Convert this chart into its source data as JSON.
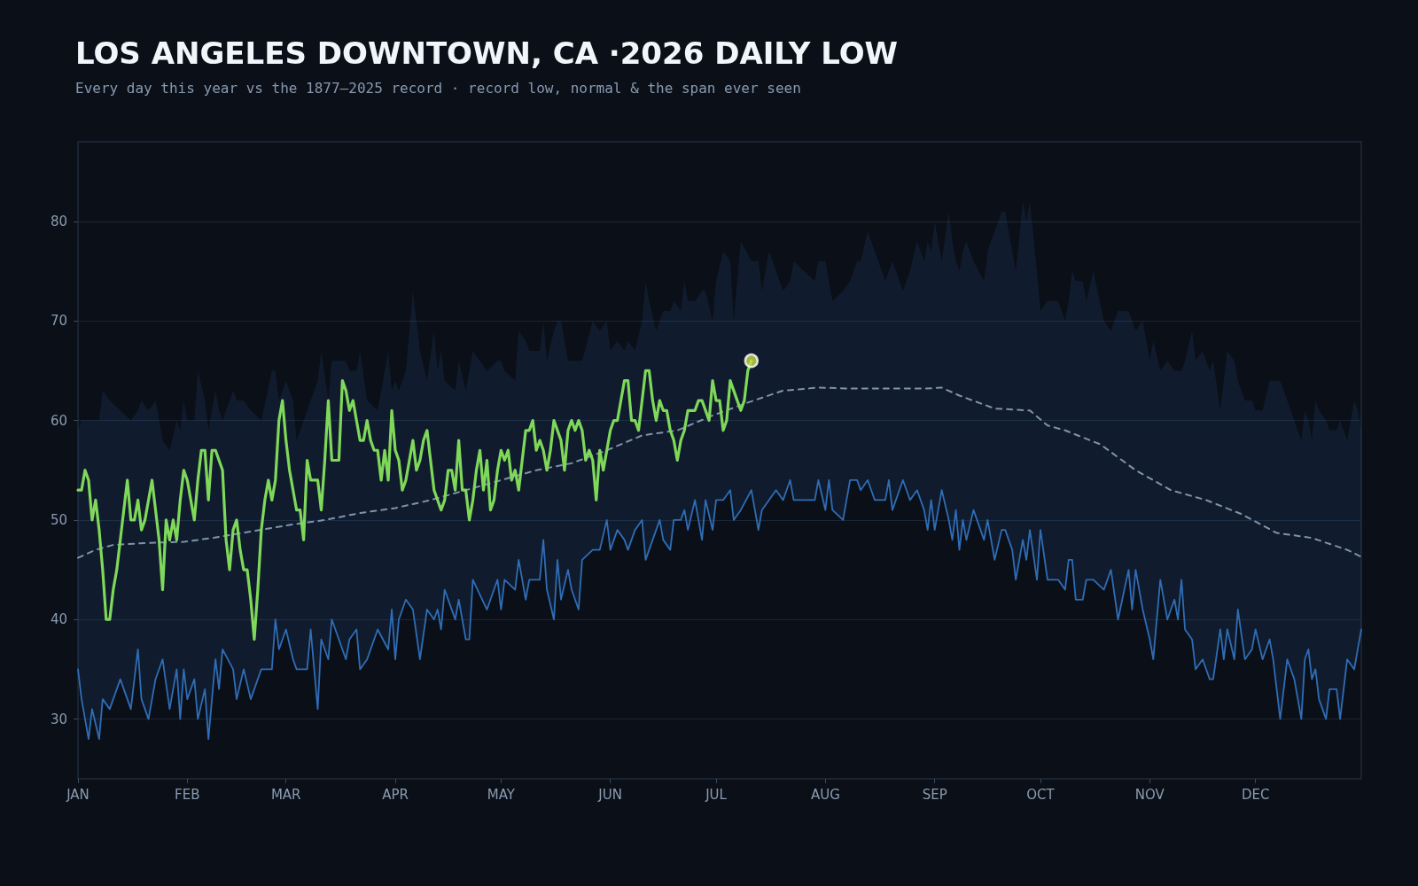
{
  "chart_data": {
    "type": "line",
    "title": "LOS ANGELES DOWNTOWN, CA ·2026 DAILY LOW",
    "subtitle": "Every day this year vs the 1877–2025 record · record low, normal & the span ever seen",
    "xlim": [
      "--01-01",
      "--12-31"
    ],
    "xticks": [
      {
        "value": "--01-01",
        "label": "JAN"
      },
      {
        "value": "--02-01",
        "label": "FEB"
      },
      {
        "value": "--03-01",
        "label": "MAR"
      },
      {
        "value": "--04-01",
        "label": "APR"
      },
      {
        "value": "--05-01",
        "label": "MAY"
      },
      {
        "value": "--06-01",
        "label": "JUN"
      },
      {
        "value": "--07-01",
        "label": "JUL"
      },
      {
        "value": "--08-01",
        "label": "AUG"
      },
      {
        "value": "--09-01",
        "label": "SEP"
      },
      {
        "value": "--10-01",
        "label": "OCT"
      },
      {
        "value": "--11-01",
        "label": "NOV"
      },
      {
        "value": "--12-01",
        "label": "DEC"
      }
    ],
    "ylim": [
      24,
      88
    ],
    "yticks": [
      30,
      40,
      50,
      60,
      70,
      80
    ],
    "grid": "y",
    "marker": "none",
    "series": [
      {
        "color": "#2f6db5",
        "x": [
          "--01-01",
          "--01-02",
          "--01-04",
          "--01-05",
          "--01-07",
          "--01-08",
          "--01-10",
          "--01-13",
          "--01-16",
          "--01-18",
          "--01-19",
          "--01-21",
          "--01-23",
          "--01-25",
          "--01-27",
          "--01-29",
          "--01-30",
          "--01-31",
          "--02-01",
          "--02-03",
          "--02-04",
          "--02-06",
          "--02-07",
          "--02-09",
          "--02-10",
          "--02-11",
          "--02-14",
          "--02-15",
          "--02-17",
          "--02-19",
          "--02-22",
          "--02-25",
          "--02-26",
          "--02-27",
          "--03-01",
          "--03-03",
          "--03-04",
          "--03-07",
          "--03-08",
          "--03-10",
          "--03-11",
          "--03-13",
          "--03-14",
          "--03-18",
          "--03-19",
          "--03-21",
          "--03-22",
          "--03-24",
          "--03-27",
          "--03-30",
          "--03-31",
          "--04-01",
          "--04-02",
          "--04-04",
          "--04-06",
          "--04-08",
          "--04-10",
          "--04-12",
          "--04-13",
          "--04-14",
          "--04-15",
          "--04-18",
          "--04-19",
          "--04-21",
          "--04-22",
          "--04-23",
          "--04-27",
          "--04-30",
          "--05-01",
          "--05-02",
          "--05-05",
          "--05-06",
          "--05-08",
          "--05-09",
          "--05-12",
          "--05-13",
          "--05-14",
          "--05-16",
          "--05-17",
          "--05-18",
          "--05-20",
          "--05-21",
          "--05-23",
          "--05-24",
          "--05-27",
          "--05-29",
          "--05-31",
          "--06-01",
          "--06-03",
          "--06-05",
          "--06-06",
          "--06-08",
          "--06-10",
          "--06-11",
          "--06-12",
          "--06-14",
          "--06-15",
          "--06-16",
          "--06-18",
          "--06-19",
          "--06-21",
          "--06-22",
          "--06-23",
          "--06-25",
          "--06-27",
          "--06-28",
          "--06-30",
          "--07-01",
          "--07-03",
          "--07-05",
          "--07-06",
          "--07-08",
          "--07-11",
          "--07-13",
          "--07-14",
          "--07-16",
          "--07-18",
          "--07-20",
          "--07-22",
          "--07-23",
          "--07-29",
          "--07-30",
          "--08-01",
          "--08-02",
          "--08-03",
          "--08-06",
          "--08-08",
          "--08-10",
          "--08-11",
          "--08-13",
          "--08-15",
          "--08-18",
          "--08-19",
          "--08-20",
          "--08-23",
          "--08-25",
          "--08-27",
          "--08-29",
          "--08-30",
          "--08-31",
          "--09-01",
          "--09-03",
          "--09-05",
          "--09-06",
          "--09-07",
          "--09-08",
          "--09-09",
          "--09-10",
          "--09-12",
          "--09-15",
          "--09-16",
          "--09-18",
          "--09-20",
          "--09-21",
          "--09-23",
          "--09-24",
          "--09-26",
          "--09-27",
          "--09-28",
          "--09-30",
          "--10-01",
          "--10-03",
          "--10-06",
          "--10-08",
          "--10-09",
          "--10-10",
          "--10-11",
          "--10-13",
          "--10-14",
          "--10-16",
          "--10-19",
          "--10-21",
          "--10-23",
          "--10-26",
          "--10-27",
          "--10-28",
          "--10-30",
          "--11-01",
          "--11-02",
          "--11-04",
          "--11-06",
          "--11-08",
          "--11-09",
          "--11-10",
          "--11-11",
          "--11-13",
          "--11-14",
          "--11-16",
          "--11-18",
          "--11-19",
          "--11-21",
          "--11-22",
          "--11-23",
          "--11-25",
          "--11-26",
          "--11-28",
          "--11-30",
          "--12-01",
          "--12-03",
          "--12-05",
          "--12-06",
          "--12-08",
          "--12-10",
          "--12-12",
          "--12-14",
          "--12-15",
          "--12-16",
          "--12-17",
          "--12-18",
          "--12-19",
          "--12-21",
          "--12-22",
          "--12-24",
          "--12-25",
          "--12-27",
          "--12-29",
          "--12-30",
          "--12-31"
        ],
        "values": [
          35,
          32,
          28,
          31,
          28,
          32,
          31,
          34,
          31,
          37,
          32,
          30,
          34,
          36,
          31,
          35,
          30,
          35,
          32,
          34,
          30,
          33,
          28,
          36,
          33,
          37,
          35,
          32,
          35,
          32,
          35,
          35,
          40,
          37,
          39,
          36,
          35,
          35,
          39,
          31,
          38,
          36,
          40,
          36,
          38,
          39,
          35,
          36,
          39,
          37,
          41,
          36,
          40,
          42,
          41,
          36,
          41,
          40,
          41,
          39,
          43,
          40,
          42,
          38,
          38,
          44,
          41,
          44,
          41,
          44,
          43,
          46,
          42,
          44,
          44,
          48,
          43,
          40,
          46,
          42,
          45,
          43,
          41,
          46,
          47,
          47,
          50,
          47,
          49,
          48,
          47,
          49,
          50,
          46,
          47,
          49,
          50,
          48,
          47,
          50,
          50,
          51,
          49,
          52,
          48,
          52,
          49,
          52,
          52,
          53,
          50,
          51,
          53,
          49,
          51,
          52,
          53,
          52,
          54,
          52,
          52,
          54,
          51,
          54,
          51,
          50,
          54,
          54,
          53,
          54,
          52,
          52,
          54,
          51,
          54,
          52,
          53,
          51,
          49,
          52,
          49,
          53,
          50,
          48,
          51,
          47,
          50,
          48,
          51,
          48,
          50,
          46,
          49,
          49,
          47,
          44,
          48,
          46,
          49,
          44,
          49,
          44,
          44,
          43,
          46,
          46,
          42,
          42,
          44,
          44,
          43,
          45,
          40,
          45,
          41,
          45,
          41,
          38,
          36,
          44,
          40,
          42,
          40,
          44,
          39,
          38,
          35,
          36,
          34,
          34,
          39,
          36,
          39,
          36,
          41,
          36,
          37,
          39,
          36,
          38,
          36,
          30,
          36,
          34,
          30,
          36,
          37,
          34,
          35,
          32,
          30,
          33,
          33,
          30,
          36,
          35,
          37,
          39
        ],
        "lower": [
          35,
          32,
          28,
          31,
          28,
          32,
          31,
          34,
          31,
          37,
          32,
          30,
          34,
          36,
          31,
          35,
          30,
          35,
          32,
          34,
          30,
          33,
          28,
          36,
          33,
          37,
          35,
          32,
          35,
          32,
          35,
          35,
          40,
          37,
          39,
          36,
          35,
          35,
          39,
          31,
          38,
          36,
          40,
          36,
          38,
          39,
          35,
          36,
          39,
          37,
          41,
          36,
          40,
          42,
          41,
          36,
          41,
          40,
          41,
          39,
          43,
          40,
          42,
          38,
          38,
          44,
          41,
          44,
          41,
          44,
          43,
          46,
          42,
          44,
          44,
          48,
          43,
          40,
          46,
          42,
          45,
          43,
          41,
          46,
          47,
          47,
          50,
          47,
          49,
          48,
          47,
          49,
          50,
          46,
          47,
          49,
          50,
          48,
          47,
          50,
          50,
          51,
          49,
          52,
          48,
          52,
          49,
          52,
          52,
          53,
          50,
          51,
          53,
          49,
          51,
          52,
          53,
          52,
          54,
          52,
          52,
          54,
          51,
          54,
          51,
          50,
          54,
          54,
          53,
          54,
          52,
          52,
          54,
          51,
          54,
          52,
          53,
          51,
          49,
          52,
          49,
          53,
          50,
          48,
          51,
          47,
          50,
          48,
          51,
          48,
          50,
          46,
          49,
          49,
          47,
          44,
          48,
          46,
          49,
          44,
          49,
          44,
          44,
          43,
          46,
          46,
          42,
          42,
          44,
          44,
          43,
          45,
          40,
          45,
          41,
          45,
          41,
          38,
          36,
          44,
          40,
          42,
          40,
          44,
          39,
          38,
          35,
          36,
          34,
          34,
          39,
          36,
          39,
          36,
          41,
          36,
          37,
          39,
          36,
          38,
          36,
          30,
          36,
          34,
          30,
          36,
          37,
          34,
          35,
          32,
          30,
          33,
          33,
          30,
          36,
          35,
          37,
          39
        ],
        "upper": [
          59,
          60,
          60,
          60,
          60,
          63,
          62,
          61,
          60,
          61,
          62,
          61,
          62,
          58,
          57,
          60,
          59,
          62,
          60,
          60,
          65,
          62,
          59,
          63,
          61,
          60,
          63,
          62,
          62,
          61,
          60,
          65,
          65,
          62,
          64,
          62,
          58,
          61,
          62,
          64,
          67,
          62,
          66,
          66,
          65,
          65,
          67,
          62,
          61,
          67,
          63,
          64,
          63,
          65,
          73,
          67,
          64,
          69,
          65,
          67,
          64,
          63,
          66,
          63,
          65,
          67,
          65,
          66,
          66,
          65,
          64,
          69,
          68,
          67,
          67,
          70,
          66,
          69,
          70,
          70,
          66,
          66,
          66,
          66,
          70,
          69,
          70,
          67,
          68,
          67,
          68,
          67,
          70,
          74,
          72,
          69,
          70,
          71,
          71,
          72,
          71,
          74,
          72,
          72,
          73,
          73,
          70,
          74,
          77,
          76,
          70,
          78,
          76,
          76,
          73,
          77,
          75,
          73,
          74,
          76,
          74,
          76,
          76,
          74,
          72,
          73,
          74,
          76,
          76,
          79,
          77,
          74,
          75,
          76,
          73,
          75,
          78,
          76,
          78,
          77,
          80,
          76,
          81,
          78,
          76,
          75,
          77,
          78,
          76,
          74,
          77,
          79,
          81,
          81,
          77,
          75,
          82,
          80,
          82,
          75,
          71,
          72,
          72,
          70,
          72,
          75,
          74,
          74,
          72,
          75,
          70,
          69,
          71,
          71,
          70,
          69,
          70,
          66,
          68,
          65,
          66,
          65,
          65,
          65,
          66,
          69,
          66,
          67,
          65,
          66,
          61,
          64,
          67,
          66,
          64,
          62,
          62,
          61,
          61,
          64,
          64,
          64,
          62,
          60,
          58,
          61,
          60,
          58,
          62,
          61,
          60,
          59,
          59,
          60,
          58,
          62,
          61,
          59
        ]
      },
      {
        "color": "#7f93ab",
        "line_style": "dashed",
        "x": [
          "--01-01",
          "--01-06",
          "--01-11",
          "--01-21",
          "--01-31",
          "--02-10",
          "--02-20",
          "--03-02",
          "--03-12",
          "--03-22",
          "--04-01",
          "--04-11",
          "--04-21",
          "--05-01",
          "--05-11",
          "--05-21",
          "--05-31",
          "--06-10",
          "--06-20",
          "--06-30",
          "--07-10",
          "--07-20",
          "--07-30",
          "--08-09",
          "--08-19",
          "--08-29",
          "--09-03",
          "--09-08",
          "--09-18",
          "--09-28",
          "--10-03",
          "--10-08",
          "--10-18",
          "--10-28",
          "--11-07",
          "--11-17",
          "--11-27",
          "--12-07",
          "--12-17",
          "--12-27",
          "--12-31"
        ],
        "values": [
          46.2,
          47,
          47.5,
          47.7,
          47.8,
          48.3,
          48.9,
          49.5,
          50,
          50.7,
          51.2,
          52,
          53,
          54,
          55,
          55.7,
          57,
          58.5,
          59,
          60.5,
          61.8,
          63,
          63.3,
          63.2,
          63.2,
          63.2,
          63.3,
          62.5,
          61.2,
          61,
          59.5,
          59,
          57.6,
          55,
          53,
          52,
          50.6,
          48.7,
          48.2,
          47,
          46.3
        ]
      },
      {
        "color": "#7fd85a",
        "x": [
          "--01-01",
          "--01-02",
          "--01-03",
          "--01-04",
          "--01-05",
          "--01-06",
          "--01-07",
          "--01-08",
          "--01-09",
          "--01-10",
          "--01-11",
          "--01-12",
          "--01-13",
          "--01-14",
          "--01-15",
          "--01-16",
          "--01-17",
          "--01-18",
          "--01-19",
          "--01-20",
          "--01-21",
          "--01-22",
          "--01-23",
          "--01-24",
          "--01-25",
          "--01-26",
          "--01-27",
          "--01-28",
          "--01-29",
          "--01-30",
          "--01-31",
          "--02-01",
          "--02-02",
          "--02-03",
          "--02-04",
          "--02-05",
          "--02-06",
          "--02-07",
          "--02-08",
          "--02-09",
          "--02-10",
          "--02-11",
          "--02-12",
          "--02-13",
          "--02-14",
          "--02-15",
          "--02-16",
          "--02-17",
          "--02-18",
          "--02-19",
          "--02-20",
          "--02-21",
          "--02-22",
          "--02-23",
          "--02-24",
          "--02-25",
          "--02-26",
          "--02-27",
          "--02-28",
          "--03-01",
          "--03-02",
          "--03-03",
          "--03-04",
          "--03-05",
          "--03-06",
          "--03-07",
          "--03-08",
          "--03-09",
          "--03-10",
          "--03-11",
          "--03-12",
          "--03-13",
          "--03-14",
          "--03-15",
          "--03-16",
          "--03-17",
          "--03-18",
          "--03-19",
          "--03-20",
          "--03-21",
          "--03-22",
          "--03-23",
          "--03-24",
          "--03-25",
          "--03-26",
          "--03-27",
          "--03-28",
          "--03-29",
          "--03-30",
          "--03-31",
          "--04-01",
          "--04-02",
          "--04-03",
          "--04-04",
          "--04-05",
          "--04-06",
          "--04-07",
          "--04-08",
          "--04-09",
          "--04-10",
          "--04-11",
          "--04-12",
          "--04-13",
          "--04-14",
          "--04-15",
          "--04-16",
          "--04-17",
          "--04-18",
          "--04-19",
          "--04-20",
          "--04-21",
          "--04-22",
          "--04-23",
          "--04-24",
          "--04-25",
          "--04-26",
          "--04-27",
          "--04-28",
          "--04-29",
          "--04-30",
          "--05-01",
          "--05-02",
          "--05-03",
          "--05-04",
          "--05-05",
          "--05-06",
          "--05-07",
          "--05-08",
          "--05-09",
          "--05-10",
          "--05-11",
          "--05-12",
          "--05-13",
          "--05-14",
          "--05-15",
          "--05-16",
          "--05-17",
          "--05-18",
          "--05-19",
          "--05-20",
          "--05-21",
          "--05-22",
          "--05-23",
          "--05-24",
          "--05-25",
          "--05-26",
          "--05-27",
          "--05-28",
          "--05-29",
          "--05-30",
          "--05-31",
          "--06-01",
          "--06-02",
          "--06-03",
          "--06-04",
          "--06-05",
          "--06-06",
          "--06-07",
          "--06-08",
          "--06-09",
          "--06-10",
          "--06-11",
          "--06-12",
          "--06-13",
          "--06-14",
          "--06-15",
          "--06-16",
          "--06-17",
          "--06-18",
          "--06-19",
          "--06-20",
          "--06-21",
          "--06-22",
          "--06-23",
          "--06-24",
          "--06-25",
          "--06-26",
          "--06-27",
          "--06-28",
          "--06-29",
          "--06-30",
          "--07-01",
          "--07-02",
          "--07-03",
          "--07-04",
          "--07-05",
          "--07-06",
          "--07-07",
          "--07-08",
          "--07-09",
          "--07-10",
          "--07-11"
        ],
        "values": [
          53,
          53,
          55,
          54,
          50,
          52,
          49,
          45,
          40,
          40,
          43,
          45,
          48,
          51,
          54,
          50,
          50,
          52,
          49,
          50,
          52,
          54,
          51,
          48,
          43,
          50,
          48,
          50,
          48,
          52,
          55,
          54,
          52,
          50,
          54,
          57,
          57,
          52,
          57,
          57,
          56,
          55,
          48,
          45,
          49,
          50,
          47,
          45,
          45,
          42,
          38,
          43,
          49,
          52,
          54,
          52,
          54,
          60,
          62,
          58,
          55,
          53,
          51,
          51,
          48,
          56,
          54,
          54,
          54,
          51,
          56,
          62,
          56,
          56,
          56,
          64,
          63,
          61,
          62,
          60,
          58,
          58,
          60,
          58,
          57,
          57,
          54,
          57,
          54,
          61,
          57,
          56,
          53,
          54,
          56,
          58,
          55,
          56,
          58,
          59,
          56,
          53,
          52,
          51,
          52,
          55,
          55,
          53,
          58,
          53,
          53,
          50,
          52,
          55,
          57,
          53,
          56,
          51,
          52,
          55,
          57,
          56,
          57,
          54,
          55,
          53,
          56,
          59,
          59,
          60,
          57,
          58,
          57,
          55,
          57,
          60,
          59,
          58,
          55,
          59,
          60,
          59,
          60,
          59,
          56,
          57,
          56,
          52,
          57,
          55,
          57,
          59,
          60,
          60,
          62,
          64,
          64,
          60,
          60,
          59,
          62,
          65,
          65,
          62,
          60,
          62,
          61,
          61,
          59,
          58,
          56,
          58,
          59,
          61,
          61,
          61,
          62,
          62,
          61,
          60,
          64,
          62,
          62,
          59,
          60,
          64,
          63,
          62,
          61,
          62,
          65,
          66
        ]
      },
      {
        "type": "scatter",
        "marker": "circle",
        "color": "#c5dc48",
        "x": [
          "--07-11"
        ],
        "values": [
          66
        ]
      }
    ]
  }
}
